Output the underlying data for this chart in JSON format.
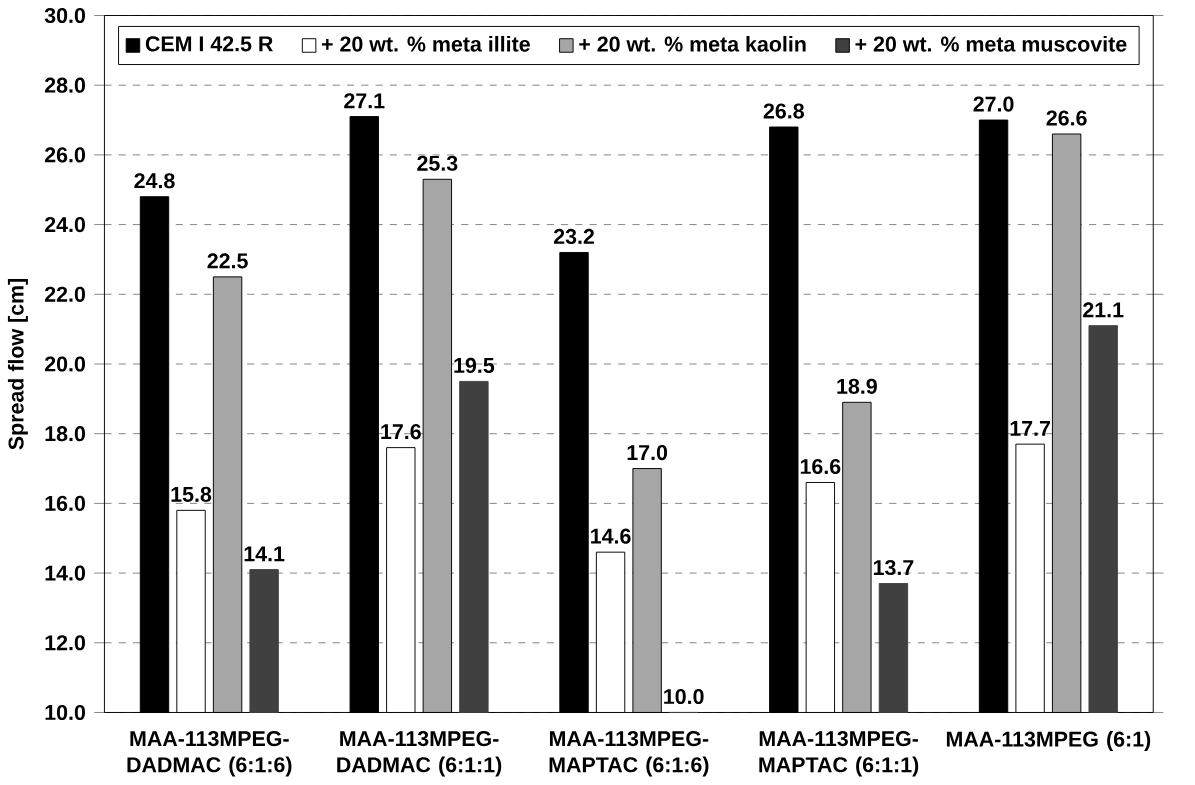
{
  "chart_data": {
    "type": "bar",
    "ylabel": "Spread flow [cm]",
    "categories": [
      "MAA-113MPEG-DADMAC (6:1:6)",
      "MAA-113MPEG-DADMAC (6:1:1)",
      "MAA-113MPEG-MAPTAC (6:1:6)",
      "MAA-113MPEG-MAPTAC (6:1:1)",
      "MAA-113MPEG (6:1)"
    ],
    "series": [
      {
        "name": "CEM I 42.5 R",
        "color": "#000000",
        "values": [
          24.8,
          27.1,
          23.2,
          26.8,
          27.0
        ],
        "value_labels": [
          "24.8",
          "27.1",
          "23.2",
          "26.8",
          "27.0"
        ]
      },
      {
        "name": "+ 20 wt. % meta illite",
        "color": "#ffffff",
        "values": [
          15.8,
          17.6,
          14.6,
          16.6,
          17.7
        ],
        "value_labels": [
          "15.8",
          "17.6",
          "14.6",
          "16.6",
          "17.7"
        ]
      },
      {
        "name": "+ 20 wt. % meta kaolin",
        "color": "#a6a6a6",
        "values": [
          22.5,
          25.3,
          17.0,
          18.9,
          26.6
        ],
        "value_labels": [
          "22.5",
          "25.3",
          "17.0",
          "18.9",
          "26.6"
        ]
      },
      {
        "name": "+ 20 wt. % meta muscovite",
        "color": "#404040",
        "values": [
          14.1,
          19.5,
          10.0,
          13.7,
          21.1
        ],
        "value_labels": [
          "14.1",
          "19.5",
          "10.0",
          "13.7",
          "21.1"
        ]
      }
    ],
    "ylim": [
      10,
      30
    ],
    "yticks": [
      {
        "value": 10,
        "label": "10.0"
      },
      {
        "value": 12,
        "label": "12.0"
      },
      {
        "value": 14,
        "label": "14.0"
      },
      {
        "value": 16,
        "label": "16.0"
      },
      {
        "value": 18,
        "label": "18.0"
      },
      {
        "value": 20,
        "label": "20.0"
      },
      {
        "value": 22,
        "label": "22.0"
      },
      {
        "value": 24,
        "label": "24.0"
      },
      {
        "value": 26,
        "label": "26.0"
      },
      {
        "value": 28,
        "label": "28.0"
      },
      {
        "value": 30,
        "label": "30.0"
      }
    ],
    "grid": "y",
    "legend": "top"
  }
}
